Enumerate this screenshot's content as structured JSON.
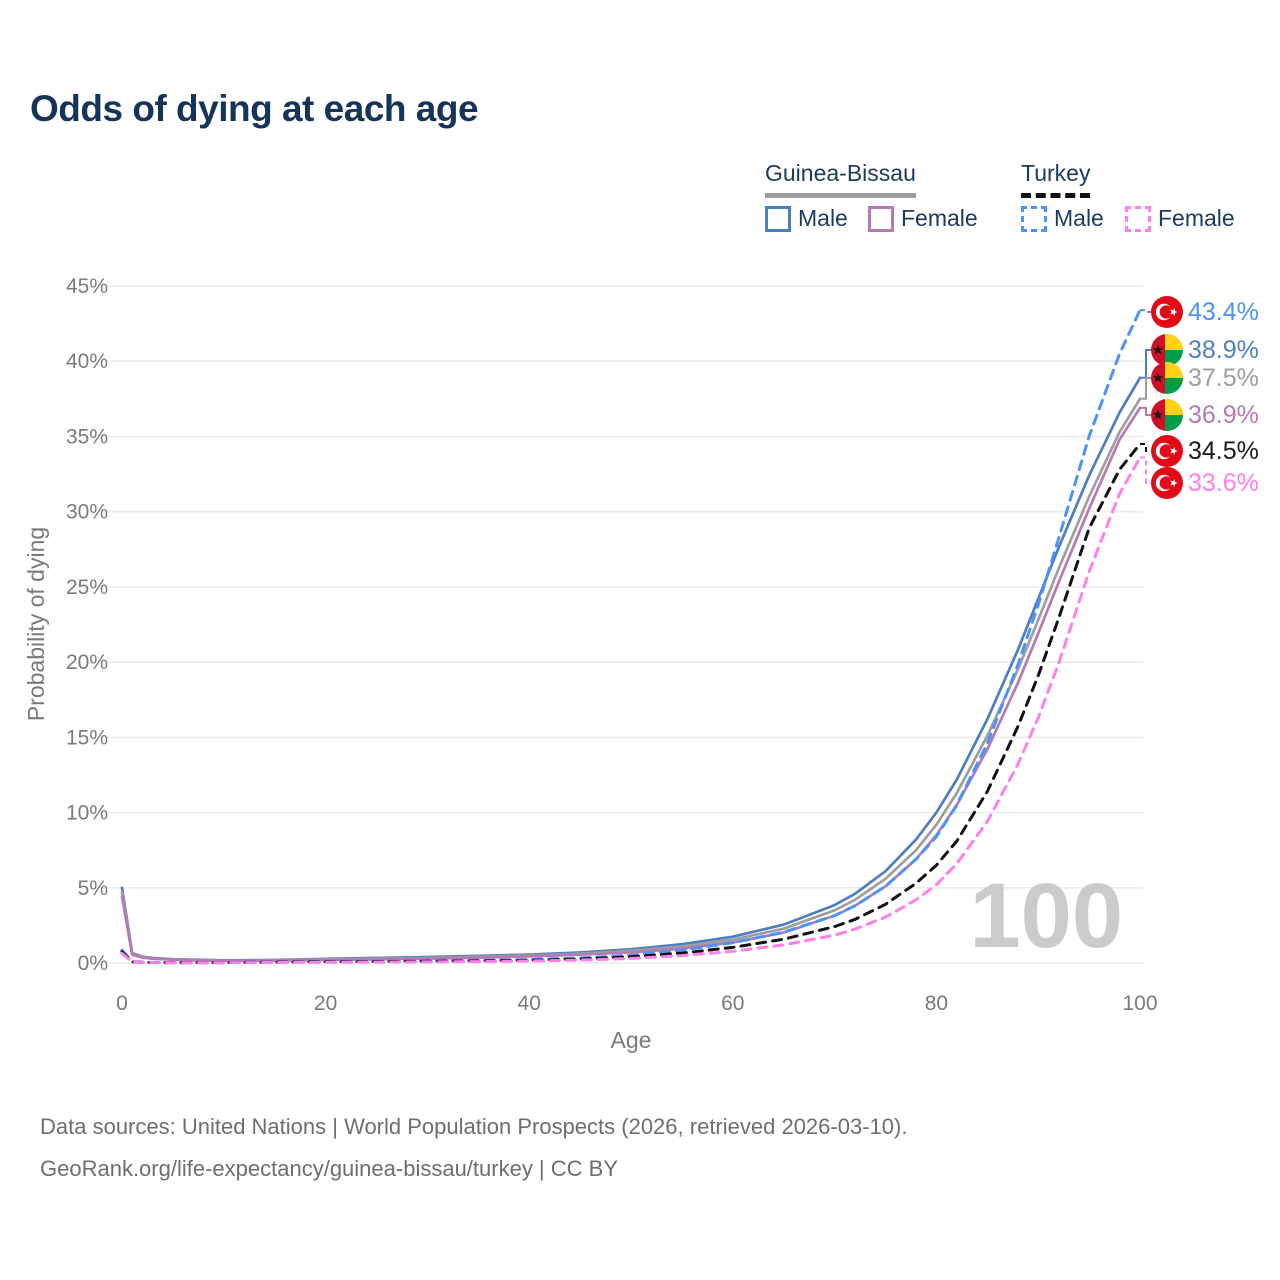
{
  "title": "Odds of dying at each age",
  "legend": {
    "groups": [
      {
        "label": "Guinea-Bissau",
        "style": "solid",
        "underline_color": "#9e9e9e"
      },
      {
        "label": "Turkey",
        "style": "dashed",
        "underline_color": "#111111"
      }
    ],
    "items": [
      {
        "label": "Male",
        "group": "Guinea-Bissau",
        "color": "#4d7ec0",
        "style": "solid"
      },
      {
        "label": "Female",
        "group": "Guinea-Bissau",
        "color": "#b778b4",
        "style": "solid"
      },
      {
        "label": "Male",
        "group": "Turkey",
        "color": "#4b93fb",
        "style": "dashed"
      },
      {
        "label": "Female",
        "group": "Turkey",
        "color": "#ff80e8",
        "style": "dashed"
      }
    ]
  },
  "watermark": "100",
  "axes": {
    "y_title": "Probability of dying",
    "x_title": "Age",
    "y_ticks": [
      "0%",
      "5%",
      "10%",
      "15%",
      "20%",
      "25%",
      "30%",
      "35%",
      "40%",
      "45%"
    ],
    "x_ticks": [
      "0",
      "20",
      "40",
      "60",
      "80",
      "100"
    ]
  },
  "chart_data": {
    "type": "line",
    "title": "Odds of dying at each age",
    "xlabel": "Age",
    "ylabel": "Probability of dying",
    "xlim": [
      0,
      100
    ],
    "ylim_percent": [
      0,
      45
    ],
    "grid": "horizontal",
    "legend_position": "top-right",
    "x": [
      0,
      1,
      2,
      3,
      5,
      10,
      15,
      20,
      25,
      30,
      35,
      40,
      45,
      50,
      55,
      60,
      65,
      70,
      72,
      75,
      78,
      80,
      82,
      85,
      88,
      90,
      92,
      95,
      98,
      100
    ],
    "series": [
      {
        "key": "gb-male",
        "name": "Guinea-Bissau Male",
        "color": "#4d7ec0",
        "style": "solid",
        "values": [
          5.0,
          0.65,
          0.42,
          0.33,
          0.25,
          0.17,
          0.2,
          0.28,
          0.34,
          0.4,
          0.47,
          0.56,
          0.7,
          0.92,
          1.25,
          1.75,
          2.55,
          3.85,
          4.6,
          6.1,
          8.2,
          10.0,
          12.2,
          16.2,
          20.8,
          24.2,
          27.6,
          32.4,
          36.6,
          38.9
        ]
      },
      {
        "key": "gb-both",
        "name": "Guinea-Bissau Both sexes",
        "color": "#9e9e9e",
        "style": "solid",
        "values": [
          4.7,
          0.6,
          0.39,
          0.31,
          0.23,
          0.155,
          0.18,
          0.24,
          0.29,
          0.345,
          0.41,
          0.5,
          0.62,
          0.81,
          1.1,
          1.55,
          2.28,
          3.5,
          4.2,
          5.6,
          7.5,
          9.2,
          11.3,
          15.1,
          19.5,
          22.8,
          26.2,
          31.0,
          35.3,
          37.5
        ]
      },
      {
        "key": "gb-female",
        "name": "Guinea-Bissau Female",
        "color": "#b778b4",
        "style": "solid",
        "values": [
          4.4,
          0.55,
          0.36,
          0.29,
          0.21,
          0.14,
          0.16,
          0.2,
          0.245,
          0.29,
          0.35,
          0.44,
          0.55,
          0.71,
          0.96,
          1.36,
          2.02,
          3.15,
          3.8,
          5.1,
          6.9,
          8.5,
          10.5,
          14.2,
          18.6,
          21.9,
          25.3,
          30.2,
          34.8,
          36.9
        ]
      },
      {
        "key": "tr-male",
        "name": "Turkey Male",
        "color": "#4b93fb",
        "style": "dashed",
        "values": [
          0.85,
          0.07,
          0.05,
          0.04,
          0.03,
          0.03,
          0.06,
          0.1,
          0.12,
          0.14,
          0.17,
          0.23,
          0.33,
          0.52,
          0.85,
          1.35,
          2.05,
          3.15,
          3.8,
          5.1,
          6.9,
          8.4,
          10.5,
          14.6,
          19.8,
          23.8,
          28.2,
          35.0,
          40.5,
          43.4
        ]
      },
      {
        "key": "tr-both",
        "name": "Turkey Both sexes",
        "color": "#111111",
        "style": "dashed",
        "values": [
          0.75,
          0.06,
          0.045,
          0.035,
          0.027,
          0.025,
          0.05,
          0.08,
          0.095,
          0.11,
          0.135,
          0.18,
          0.26,
          0.41,
          0.66,
          1.04,
          1.58,
          2.42,
          2.9,
          3.9,
          5.3,
          6.5,
          8.1,
          11.4,
          15.7,
          19.1,
          22.9,
          28.9,
          32.8,
          34.5
        ]
      },
      {
        "key": "tr-female",
        "name": "Turkey Female",
        "color": "#ff80e8",
        "style": "dashed",
        "values": [
          0.65,
          0.05,
          0.04,
          0.03,
          0.022,
          0.02,
          0.032,
          0.045,
          0.06,
          0.075,
          0.095,
          0.13,
          0.19,
          0.3,
          0.49,
          0.78,
          1.2,
          1.85,
          2.25,
          3.05,
          4.2,
          5.2,
          6.6,
          9.4,
          13.2,
          16.3,
          19.9,
          26.0,
          31.2,
          33.6
        ]
      }
    ],
    "end_labels": [
      {
        "series": "tr-male",
        "text": "43.4%",
        "flag": "turkey",
        "label_color": "#4b93fb"
      },
      {
        "series": "gb-male",
        "text": "38.9%",
        "flag": "guinea-bissau",
        "label_color": "#4d7ec0"
      },
      {
        "series": "gb-both",
        "text": "37.5%",
        "flag": "guinea-bissau",
        "label_color": "#9e9e9e"
      },
      {
        "series": "gb-female",
        "text": "36.9%",
        "flag": "guinea-bissau",
        "label_color": "#b778b4"
      },
      {
        "series": "tr-both",
        "text": "34.5%",
        "flag": "turkey",
        "label_color": "#1a1a1a"
      },
      {
        "series": "tr-female",
        "text": "33.6%",
        "flag": "turkey",
        "label_color": "#ff80e8"
      }
    ],
    "flag_colors": {
      "turkey_red": "#e30a17",
      "gb_red": "#ce1126",
      "gb_yellow": "#fcd116",
      "gb_green": "#009e49",
      "gb_star": "#1a1a1a"
    }
  },
  "footer": {
    "line1": "Data sources: United Nations | World Population Prospects (2026, retrieved 2026-03-10).",
    "line2": "GeoRank.org/life-expectancy/guinea-bissau/turkey | CC BY"
  }
}
